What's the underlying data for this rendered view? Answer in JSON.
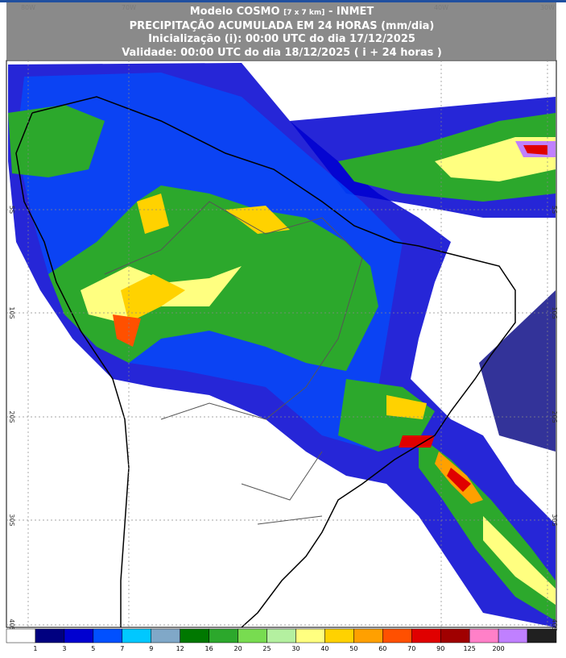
{
  "header": {
    "line1": {
      "model": "Modelo COSMO",
      "resolution": "[7 x 7 km]",
      "source": "- INMET"
    },
    "line2": "PRECIPITAÇÃO ACUMULADA EM 24 HORAS (mm/dia)",
    "line3": "Inicialização (i): 00:00 UTC do dia 17/12/2025",
    "line4": "Validade: 00:00 UTC do dia 18/12/2025 ( i + 24 horas )"
  },
  "map": {
    "lon_labels": [
      "80W",
      "70W",
      "40W",
      "30W"
    ],
    "lat_labels": [
      "5S",
      "10S",
      "20S",
      "30S",
      "40S"
    ]
  },
  "legend": {
    "colors": [
      "#ffffff",
      "#000080",
      "#0000d0",
      "#0050ff",
      "#00c8ff",
      "#80a8c8",
      "#007800",
      "#2ca82c",
      "#78dc50",
      "#b4f0a0",
      "#ffff80",
      "#ffd200",
      "#ffa000",
      "#ff5000",
      "#e00000",
      "#a00000",
      "#ff80c8",
      "#c080ff",
      "#202020"
    ],
    "labels": [
      1,
      3,
      5,
      7,
      9,
      12,
      16,
      20,
      25,
      30,
      40,
      50,
      60,
      70,
      90,
      125,
      200
    ]
  }
}
